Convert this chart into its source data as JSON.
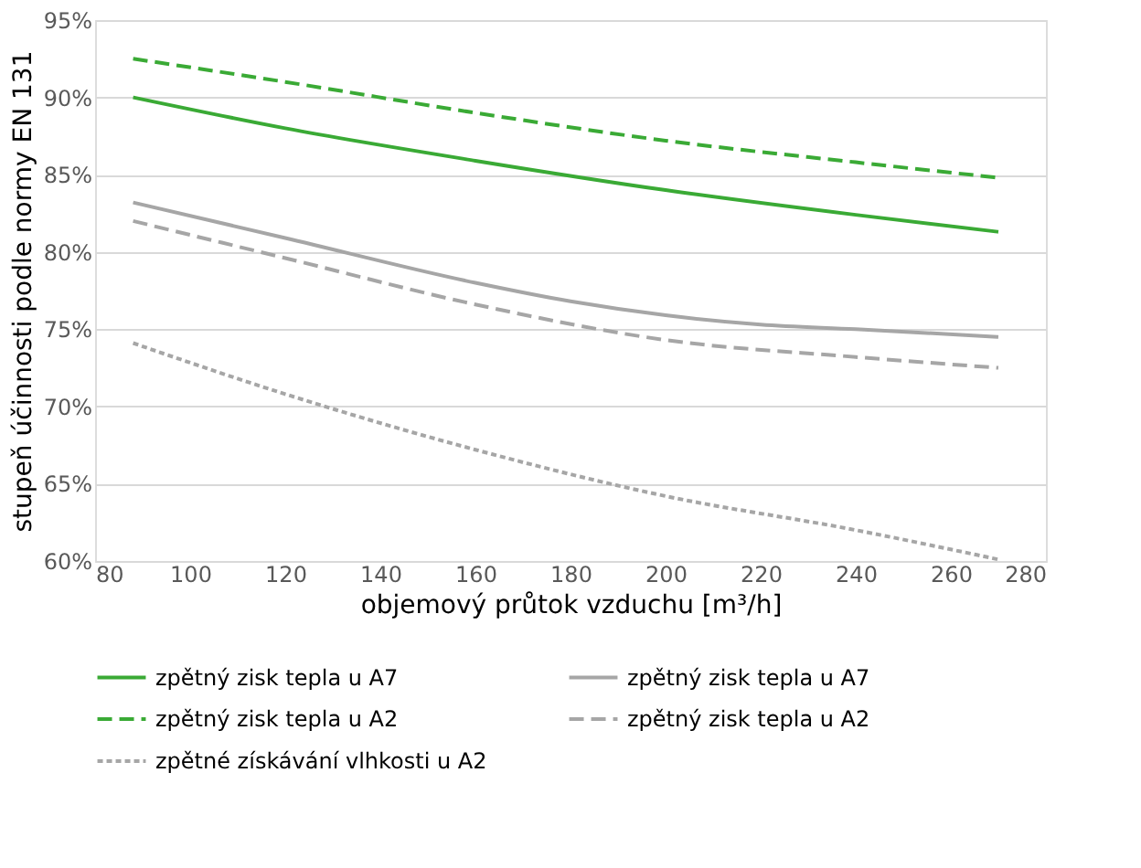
{
  "chart_data": {
    "type": "line",
    "xlabel": "objemový průtok vzduchu [m³/h]",
    "ylabel": "stupeň účinnosti podle normy EN 131",
    "xlim": [
      80,
      280
    ],
    "xticks": [
      80,
      100,
      120,
      140,
      160,
      180,
      200,
      220,
      240,
      260,
      280
    ],
    "ylim": [
      60,
      95
    ],
    "yticks": [
      {
        "value": 60,
        "label": "60%"
      },
      {
        "value": 65,
        "label": "65%"
      },
      {
        "value": 70,
        "label": "70%"
      },
      {
        "value": 75,
        "label": "75%"
      },
      {
        "value": 80,
        "label": "80%"
      },
      {
        "value": 85,
        "label": "85%"
      },
      {
        "value": 90,
        "label": "90%"
      },
      {
        "value": 95,
        "label": "95%"
      }
    ],
    "grid": "y",
    "legend": "bottom",
    "marker": "none",
    "series": [
      {
        "name": "zpětný zisk tepla u A7",
        "color": "#3aaa35",
        "line_style": "solid",
        "x": [
          88,
          120,
          160,
          200,
          240,
          270
        ],
        "values": [
          90,
          88,
          85.9,
          84,
          82.4,
          81.3
        ]
      },
      {
        "name": "zpětný zisk tepla u A7",
        "color": "#a6a6a6",
        "line_style": "solid",
        "x": [
          88,
          120,
          160,
          180,
          200,
          220,
          240,
          270
        ],
        "values": [
          83.2,
          80.9,
          78,
          76.8,
          75.9,
          75.3,
          75,
          74.5
        ]
      },
      {
        "name": "zpětný zisk tepla u A2",
        "color": "#3aaa35",
        "line_style": "dashed",
        "x": [
          88,
          120,
          160,
          200,
          240,
          270
        ],
        "values": [
          92.5,
          91,
          89,
          87.2,
          85.8,
          84.8
        ]
      },
      {
        "name": "zpětný zisk tepla u A2",
        "color": "#a6a6a6",
        "line_style": "dashed",
        "x": [
          88,
          120,
          160,
          200,
          240,
          270
        ],
        "values": [
          82,
          79.6,
          76.6,
          74.3,
          73.2,
          72.5
        ]
      },
      {
        "name": "zpětné získávání vlhkosti u A2",
        "color": "#a6a6a6",
        "line_style": "dotted",
        "x": [
          88,
          120,
          160,
          200,
          240,
          270
        ],
        "values": [
          74.1,
          70.8,
          67.2,
          64.2,
          62,
          60.1
        ]
      }
    ]
  }
}
